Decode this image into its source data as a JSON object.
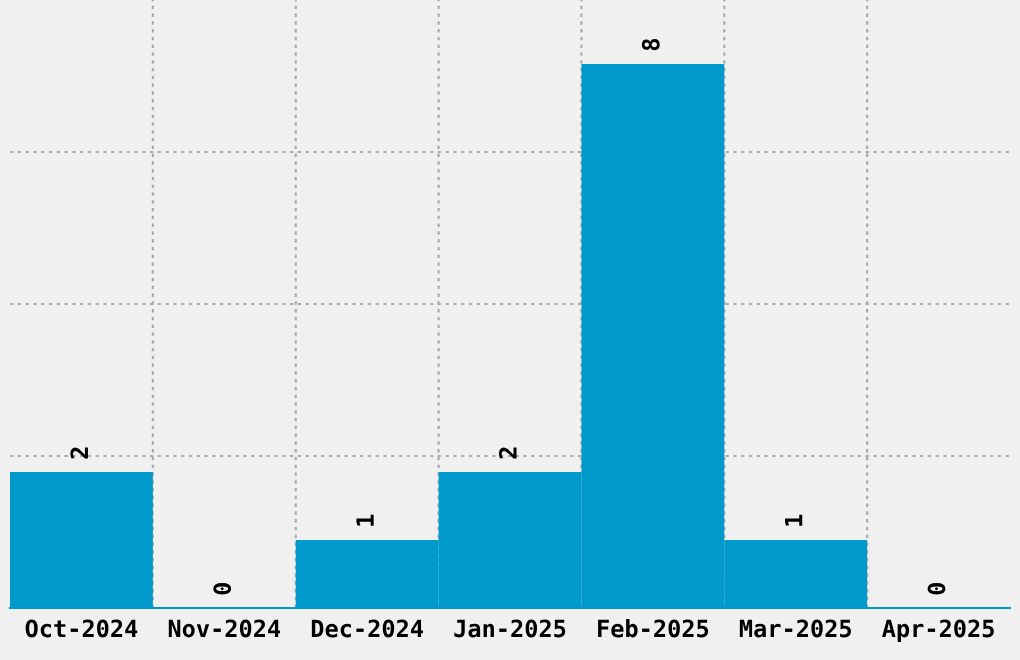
{
  "chart_data": {
    "type": "bar",
    "categories": [
      "Oct-2024",
      "Nov-2024",
      "Dec-2024",
      "Jan-2025",
      "Feb-2025",
      "Mar-2025",
      "Apr-2025"
    ],
    "values": [
      2,
      0,
      1,
      2,
      8,
      1,
      0
    ],
    "color": "#0099cc",
    "ylim": [
      0,
      8.94
    ],
    "yticks": [
      {
        "value": 2.235,
        "label": null
      },
      {
        "value": 4.47,
        "label": null
      },
      {
        "value": 6.705,
        "label": null
      }
    ],
    "tick_labels": "x",
    "data_labels": true,
    "grid": true
  }
}
